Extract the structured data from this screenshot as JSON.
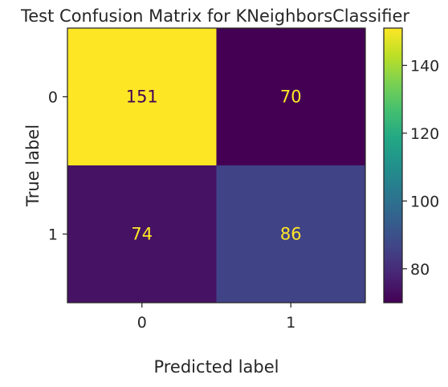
{
  "chart_data": {
    "type": "heatmap",
    "title": "Test Confusion Matrix for KNeighborsClassifier",
    "xlabel": "Predicted label",
    "ylabel": "True label",
    "x_categories": [
      "0",
      "1"
    ],
    "y_categories": [
      "0",
      "1"
    ],
    "values": [
      [
        151,
        70
      ],
      [
        74,
        86
      ]
    ],
    "colormap": "viridis",
    "colorbar": {
      "range": [
        70,
        151
      ],
      "ticks": [
        80,
        100,
        120,
        140
      ],
      "tick_labels": [
        "80",
        "100",
        "120",
        "140"
      ]
    },
    "text_color_light": "#fde725",
    "text_color_dark": "#440154",
    "grid": false
  }
}
